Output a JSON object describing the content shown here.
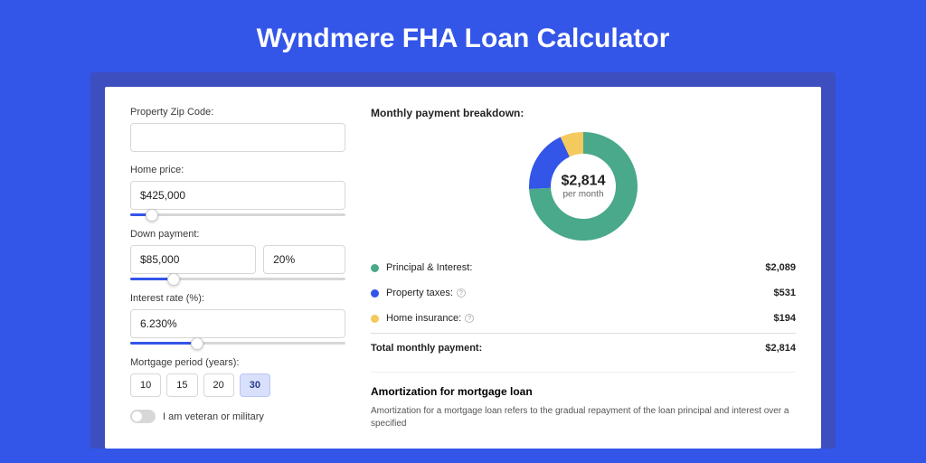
{
  "page": {
    "title": "Wyndmere FHA Loan Calculator",
    "background_color": "#3355E8",
    "card_wrapper_color": "#3D4FBF"
  },
  "form": {
    "zip": {
      "label": "Property Zip Code:",
      "value": ""
    },
    "home_price": {
      "label": "Home price:",
      "value": "$425,000",
      "slider_percent": 10
    },
    "down_payment": {
      "label": "Down payment:",
      "value": "$85,000",
      "percent_value": "20%",
      "slider_percent": 20
    },
    "interest_rate": {
      "label": "Interest rate (%):",
      "value": "6.230%",
      "slider_percent": 31
    },
    "mortgage_period": {
      "label": "Mortgage period (years):",
      "options": [
        "10",
        "15",
        "20",
        "30"
      ],
      "active_index": 3
    },
    "veteran": {
      "label": "I am veteran or military",
      "checked": false
    }
  },
  "breakdown": {
    "title": "Monthly payment breakdown:",
    "chart": {
      "type": "donut",
      "center_amount": "$2,814",
      "center_sub": "per month",
      "inner_radius": 36,
      "outer_radius": 60,
      "background_color": "#ffffff",
      "segments": [
        {
          "label": "Principal & Interest",
          "color": "#49A98A",
          "value": 2089,
          "fraction": 0.742
        },
        {
          "label": "Property taxes",
          "color": "#3355E8",
          "value": 531,
          "fraction": 0.189
        },
        {
          "label": "Home insurance",
          "color": "#F4C95D",
          "value": 194,
          "fraction": 0.069
        }
      ]
    },
    "legend": [
      {
        "dot_color": "#49A98A",
        "label": "Principal & Interest:",
        "value": "$2,089",
        "info": false
      },
      {
        "dot_color": "#3355E8",
        "label": "Property taxes:",
        "value": "$531",
        "info": true
      },
      {
        "dot_color": "#F4C95D",
        "label": "Home insurance:",
        "value": "$194",
        "info": true
      }
    ],
    "total": {
      "label": "Total monthly payment:",
      "value": "$2,814"
    }
  },
  "amortization": {
    "title": "Amortization for mortgage loan",
    "text": "Amortization for a mortgage loan refers to the gradual repayment of the loan principal and interest over a specified"
  }
}
